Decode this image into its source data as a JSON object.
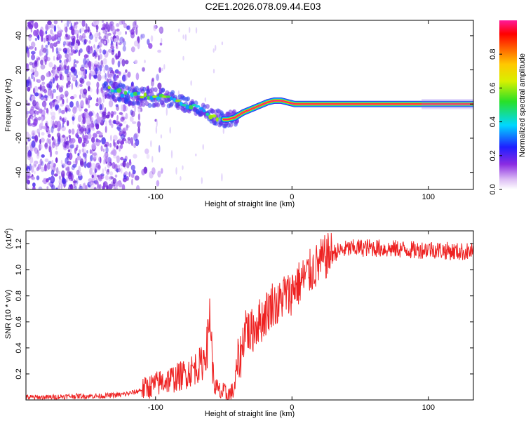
{
  "title": "C2E1.2026.078.09.44.E03",
  "chart_data": [
    {
      "type": "heatmap",
      "xlabel": "Height of straight line (km)",
      "ylabel": "Frequency (Hz)",
      "xlim": [
        -195,
        133
      ],
      "ylim": [
        -50,
        49
      ],
      "xticks": [
        -100,
        0,
        100
      ],
      "xtick_labels": [
        "-100",
        "0",
        "100"
      ],
      "yticks": [
        -40,
        -20,
        0,
        20,
        40
      ],
      "ytick_labels": [
        "-40",
        "-20",
        "0",
        "20",
        "40"
      ],
      "colorbar": {
        "label": "Normalized spectral amplitude",
        "range": [
          0,
          1
        ],
        "ticks": [
          0.0,
          0.2,
          0.4,
          0.6,
          0.8
        ],
        "tick_labels": [
          "0.0",
          "0.2",
          "0.4",
          "0.6",
          "0.8"
        ]
      },
      "ridge": {
        "x": [
          -135,
          -125,
          -115,
          -105,
          -95,
          -88,
          -80,
          -72,
          -65,
          -58,
          -52,
          -47,
          -42,
          -36,
          -30,
          -24,
          -18,
          -13,
          -8,
          -3,
          2,
          10,
          133
        ],
        "y": [
          9,
          6,
          5,
          4,
          4,
          3,
          0,
          -2,
          -4,
          -7,
          -9,
          -9,
          -8,
          -5,
          -3,
          -1,
          1,
          2,
          2,
          1,
          0,
          0,
          0
        ]
      }
    },
    {
      "type": "line",
      "xlabel": "Height of straight line (km)",
      "ylabel": "SNR (10 * v/v)",
      "scale_label": "(x10",
      "scale_exponent": "4",
      "xlim": [
        -195,
        133
      ],
      "ylim": [
        0,
        1.3
      ],
      "xticks": [
        -100,
        0,
        100
      ],
      "xtick_labels": [
        "-100",
        "0",
        "100"
      ],
      "yticks": [
        0.2,
        0.4,
        0.6,
        0.8,
        1.0,
        1.2
      ],
      "ytick_labels": [
        "0.2",
        "0.4",
        "0.6",
        "0.8",
        "1.0",
        "1.2"
      ],
      "series": [
        {
          "name": "SNR",
          "color": "#ee2222",
          "x": [
            -195,
            -180,
            -160,
            -140,
            -125,
            -115,
            -105,
            -95,
            -85,
            -78,
            -72,
            -66,
            -62,
            -60,
            -58,
            -56,
            -53,
            -50,
            -47,
            -44,
            -42,
            -40,
            -37,
            -34,
            -31,
            -28,
            -25,
            -22,
            -18,
            -14,
            -10,
            -6,
            -2,
            2,
            6,
            10,
            15,
            20,
            25,
            30,
            40,
            50,
            60,
            70,
            80,
            90,
            100,
            110,
            120,
            133
          ],
          "y": [
            0.02,
            0.02,
            0.03,
            0.03,
            0.04,
            0.06,
            0.1,
            0.14,
            0.17,
            0.2,
            0.24,
            0.28,
            0.42,
            0.7,
            0.2,
            0.09,
            0.06,
            0.05,
            0.04,
            0.05,
            0.1,
            0.28,
            0.36,
            0.6,
            0.5,
            0.55,
            0.6,
            0.62,
            0.68,
            0.75,
            0.72,
            0.82,
            0.8,
            0.88,
            0.9,
            0.95,
            1.0,
            1.05,
            1.1,
            1.13,
            1.16,
            1.17,
            1.17,
            1.16,
            1.16,
            1.15,
            1.16,
            1.15,
            1.14,
            1.14
          ]
        }
      ]
    }
  ]
}
